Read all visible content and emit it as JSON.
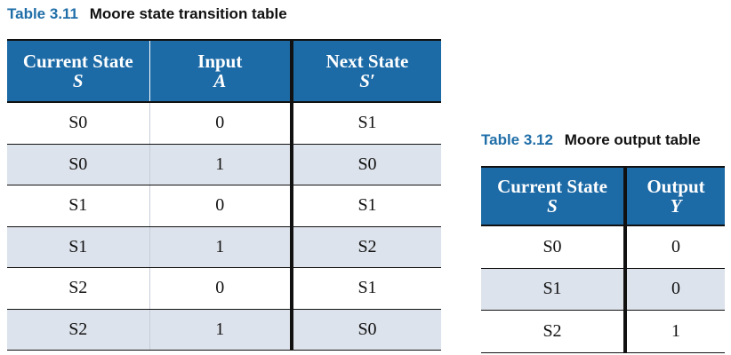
{
  "table1": {
    "caption_number": "Table 3.11",
    "caption_title": "Moore state transition table",
    "headers": [
      {
        "label": "Current State",
        "symbol": "S"
      },
      {
        "label": "Input",
        "symbol": "A"
      },
      {
        "label": "Next State",
        "symbol": "S′"
      }
    ],
    "rows": [
      [
        "S0",
        "0",
        "S1"
      ],
      [
        "S0",
        "1",
        "S0"
      ],
      [
        "S1",
        "0",
        "S1"
      ],
      [
        "S1",
        "1",
        "S2"
      ],
      [
        "S2",
        "0",
        "S1"
      ],
      [
        "S2",
        "1",
        "S0"
      ]
    ]
  },
  "table2": {
    "caption_number": "Table 3.12",
    "caption_title": "Moore output table",
    "headers": [
      {
        "label": "Current State",
        "symbol": "S"
      },
      {
        "label": "Output",
        "symbol": "Y"
      }
    ],
    "rows": [
      [
        "S0",
        "0"
      ],
      [
        "S1",
        "0"
      ],
      [
        "S2",
        "1"
      ]
    ]
  },
  "colors": {
    "caption_number": "#1f6ea8",
    "header_background": "#1c6aa6",
    "header_text": "#ffffff",
    "alternate_row": "#dde3ec"
  }
}
